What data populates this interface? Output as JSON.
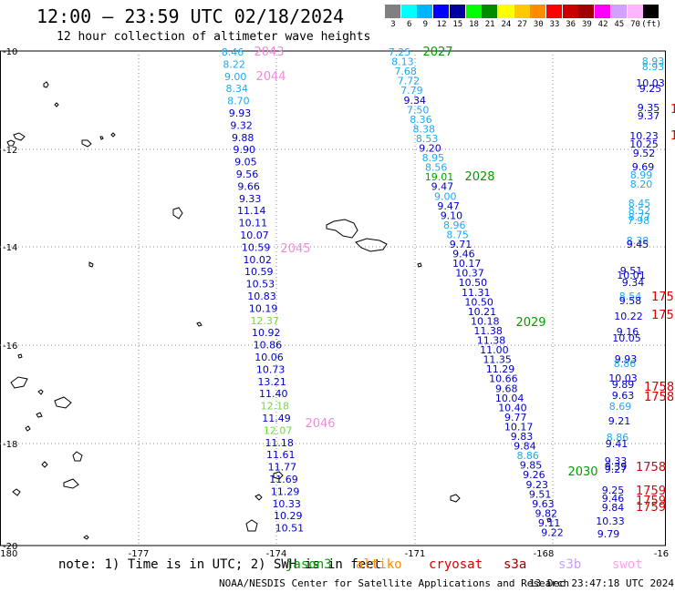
{
  "header": {
    "title": "12:00 — 23:59 UTC 02/18/2024",
    "subtitle": "12 hour collection of altimeter wave heights"
  },
  "legend": {
    "units": "(ft)",
    "bins": [
      {
        "label": "3",
        "color": "#808080"
      },
      {
        "label": "6",
        "color": "#00ffff"
      },
      {
        "label": "9",
        "color": "#00b4ff"
      },
      {
        "label": "12",
        "color": "#0000ff"
      },
      {
        "label": "15",
        "color": "#0000a0"
      },
      {
        "label": "18",
        "color": "#00ff00"
      },
      {
        "label": "21",
        "color": "#008c00"
      },
      {
        "label": "24",
        "color": "#ffff00"
      },
      {
        "label": "27",
        "color": "#ffc800"
      },
      {
        "label": "30",
        "color": "#ff8c00"
      },
      {
        "label": "33",
        "color": "#ff0000"
      },
      {
        "label": "36",
        "color": "#c80000"
      },
      {
        "label": "39",
        "color": "#a00000"
      },
      {
        "label": "42",
        "color": "#ff00ff"
      },
      {
        "label": "45",
        "color": "#d2a0ff"
      },
      {
        "label": "70",
        "color": "#ffb4ff"
      },
      {
        "label": "",
        "color": "#000000"
      }
    ]
  },
  "axes": {
    "lon_labels": [
      "-180",
      "-177",
      "-174",
      "-171",
      "-168",
      "-16"
    ],
    "lat_labels": [
      "-10",
      "-12",
      "-14",
      "-16",
      "-18",
      "-20"
    ]
  },
  "colors": {
    "cyan": "#1eaaf0",
    "blue": "#0000c8",
    "green": "#00a000",
    "lightgreen": "#6edc3c",
    "pink": "#f08cdc",
    "red": "#dc0000"
  },
  "tracks": [
    {
      "name": "2043",
      "color": "pink",
      "labels": [
        {
          "v": "2043",
          "c": "pink"
        },
        {
          "v": "2044",
          "c": "pink"
        }
      ]
    },
    {
      "name": "track-a",
      "readings": [
        {
          "v": "8.46",
          "c": "cyan"
        },
        {
          "v": "8.22",
          "c": "cyan"
        },
        {
          "v": "9.00",
          "c": "cyan"
        },
        {
          "v": "8.34",
          "c": "cyan"
        },
        {
          "v": "8.70",
          "c": "cyan"
        },
        {
          "v": "9.93",
          "c": "blue"
        },
        {
          "v": "9.32",
          "c": "blue"
        },
        {
          "v": "9.88",
          "c": "blue"
        },
        {
          "v": "9.90",
          "c": "blue"
        },
        {
          "v": "9.05",
          "c": "blue"
        },
        {
          "v": "9.56",
          "c": "blue"
        },
        {
          "v": "9.66",
          "c": "blue"
        },
        {
          "v": "9.33",
          "c": "blue"
        },
        {
          "v": "11.14",
          "c": "blue"
        },
        {
          "v": "10.11",
          "c": "blue"
        },
        {
          "v": "10.07",
          "c": "blue"
        },
        {
          "v": "10.59",
          "c": "blue"
        },
        {
          "v": "10.02",
          "c": "blue"
        },
        {
          "v": "10.59",
          "c": "blue"
        },
        {
          "v": "10.53",
          "c": "blue"
        },
        {
          "v": "10.83",
          "c": "blue"
        },
        {
          "v": "10.19",
          "c": "blue"
        },
        {
          "v": "12.37",
          "c": "lightgreen"
        },
        {
          "v": "10.92",
          "c": "blue"
        },
        {
          "v": "10.86",
          "c": "blue"
        },
        {
          "v": "10.06",
          "c": "blue"
        },
        {
          "v": "10.73",
          "c": "blue"
        },
        {
          "v": "13.21",
          "c": "blue"
        },
        {
          "v": "11.40",
          "c": "blue"
        },
        {
          "v": "12.18",
          "c": "lightgreen"
        },
        {
          "v": "11.49",
          "c": "blue"
        },
        {
          "v": "12.07",
          "c": "lightgreen"
        },
        {
          "v": "11.18",
          "c": "blue"
        },
        {
          "v": "11.61",
          "c": "blue"
        },
        {
          "v": "11.77",
          "c": "blue"
        },
        {
          "v": "11.69",
          "c": "blue"
        },
        {
          "v": "11.29",
          "c": "blue"
        },
        {
          "v": "10.33",
          "c": "blue"
        },
        {
          "v": "10.29",
          "c": "blue"
        },
        {
          "v": "10.51",
          "c": "blue"
        }
      ],
      "time_labels": [
        {
          "v": "2045",
          "c": "pink"
        },
        {
          "v": "2046",
          "c": "pink"
        }
      ]
    },
    {
      "name": "track-b",
      "readings": [
        {
          "v": "7.25",
          "c": "cyan"
        },
        {
          "v": "8.13",
          "c": "cyan"
        },
        {
          "v": "7.68",
          "c": "cyan"
        },
        {
          "v": "7.72",
          "c": "cyan"
        },
        {
          "v": "7.79",
          "c": "cyan"
        },
        {
          "v": "9.34",
          "c": "blue"
        },
        {
          "v": "7.50",
          "c": "cyan"
        },
        {
          "v": "8.36",
          "c": "cyan"
        },
        {
          "v": "8.38",
          "c": "cyan"
        },
        {
          "v": "8.53",
          "c": "cyan"
        },
        {
          "v": "9.20",
          "c": "blue"
        },
        {
          "v": "8.95",
          "c": "cyan"
        },
        {
          "v": "8.56",
          "c": "cyan"
        },
        {
          "v": "19.01",
          "c": "green"
        },
        {
          "v": "9.47",
          "c": "blue"
        },
        {
          "v": "9.00",
          "c": "cyan"
        },
        {
          "v": "9.47",
          "c": "blue"
        },
        {
          "v": "9.10",
          "c": "blue"
        },
        {
          "v": "8.96",
          "c": "cyan"
        },
        {
          "v": "8.75",
          "c": "cyan"
        },
        {
          "v": "9.71",
          "c": "blue"
        },
        {
          "v": "9.46",
          "c": "blue"
        },
        {
          "v": "10.17",
          "c": "blue"
        },
        {
          "v": "10.37",
          "c": "blue"
        },
        {
          "v": "10.50",
          "c": "blue"
        },
        {
          "v": "11.31",
          "c": "blue"
        },
        {
          "v": "10.50",
          "c": "blue"
        },
        {
          "v": "10.21",
          "c": "blue"
        },
        {
          "v": "10.18",
          "c": "blue"
        },
        {
          "v": "11.38",
          "c": "blue"
        },
        {
          "v": "11.38",
          "c": "blue"
        },
        {
          "v": "11.00",
          "c": "blue"
        },
        {
          "v": "11.35",
          "c": "blue"
        },
        {
          "v": "11.29",
          "c": "blue"
        },
        {
          "v": "10.66",
          "c": "blue"
        },
        {
          "v": "9.68",
          "c": "blue"
        },
        {
          "v": "10.04",
          "c": "blue"
        },
        {
          "v": "10.40",
          "c": "blue"
        },
        {
          "v": "9.77",
          "c": "blue"
        },
        {
          "v": "10.17",
          "c": "blue"
        },
        {
          "v": "9.83",
          "c": "blue"
        },
        {
          "v": "9.84",
          "c": "blue"
        },
        {
          "v": "8.86",
          "c": "cyan"
        },
        {
          "v": "9.85",
          "c": "blue"
        },
        {
          "v": "9.26",
          "c": "blue"
        },
        {
          "v": "9.23",
          "c": "blue"
        },
        {
          "v": "9.51",
          "c": "blue"
        },
        {
          "v": "9.63",
          "c": "blue"
        },
        {
          "v": "9.82",
          "c": "blue"
        },
        {
          "v": "9.11",
          "c": "blue"
        },
        {
          "v": "9.22",
          "c": "blue"
        }
      ],
      "time_labels": [
        {
          "v": "2027",
          "c": "green"
        },
        {
          "v": "2028",
          "c": "green"
        },
        {
          "v": "2029",
          "c": "green"
        },
        {
          "v": "2030",
          "c": "green"
        }
      ]
    },
    {
      "name": "track-c",
      "readings": [
        {
          "v": "8.93",
          "c": "cyan"
        },
        {
          "v": "8.93",
          "c": "cyan"
        },
        {
          "v": "10.03",
          "c": "blue"
        },
        {
          "v": "9.25",
          "c": "blue"
        },
        {
          "v": "9.35",
          "c": "blue"
        },
        {
          "v": "9.37",
          "c": "blue"
        },
        {
          "v": "10.23",
          "c": "blue"
        },
        {
          "v": "10.25",
          "c": "blue"
        },
        {
          "v": "9.52",
          "c": "blue"
        },
        {
          "v": "9.69",
          "c": "blue"
        },
        {
          "v": "8.99",
          "c": "cyan"
        },
        {
          "v": "8.20",
          "c": "cyan"
        },
        {
          "v": "8.45",
          "c": "cyan"
        },
        {
          "v": "8.52",
          "c": "cyan"
        },
        {
          "v": "8.77",
          "c": "cyan"
        },
        {
          "v": "7.98",
          "c": "cyan"
        },
        {
          "v": "8.38",
          "c": "cyan"
        },
        {
          "v": "9.45",
          "c": "blue"
        },
        {
          "v": "9.51",
          "c": "blue"
        },
        {
          "v": "10.01",
          "c": "blue"
        },
        {
          "v": "9.34",
          "c": "blue"
        },
        {
          "v": "8.54",
          "c": "cyan"
        },
        {
          "v": "9.58",
          "c": "blue"
        },
        {
          "v": "10.22",
          "c": "blue"
        },
        {
          "v": "9.16",
          "c": "blue"
        },
        {
          "v": "10.05",
          "c": "blue"
        },
        {
          "v": "9.93",
          "c": "blue"
        },
        {
          "v": "8.86",
          "c": "cyan"
        },
        {
          "v": "10.03",
          "c": "blue"
        },
        {
          "v": "9.89",
          "c": "blue"
        },
        {
          "v": "9.63",
          "c": "blue"
        },
        {
          "v": "8.69",
          "c": "cyan"
        },
        {
          "v": "9.21",
          "c": "blue"
        },
        {
          "v": "8.86",
          "c": "cyan"
        },
        {
          "v": "9.41",
          "c": "blue"
        },
        {
          "v": "9.33",
          "c": "blue"
        },
        {
          "v": "9.39",
          "c": "blue"
        },
        {
          "v": "9.27",
          "c": "blue"
        },
        {
          "v": "9.25",
          "c": "blue"
        },
        {
          "v": "9.46",
          "c": "blue"
        },
        {
          "v": "9.84",
          "c": "blue"
        },
        {
          "v": "10.33",
          "c": "blue"
        },
        {
          "v": "9.79",
          "c": "blue"
        }
      ],
      "time_labels": [
        {
          "v": "17",
          "c": "red"
        },
        {
          "v": "1",
          "c": "red"
        },
        {
          "v": "175",
          "c": "red"
        },
        {
          "v": "175",
          "c": "red"
        },
        {
          "v": "1758",
          "c": "red"
        },
        {
          "v": "1758",
          "c": "red"
        },
        {
          "v": "1758",
          "c": "red"
        },
        {
          "v": "1759",
          "c": "red"
        },
        {
          "v": "1759",
          "c": "red"
        },
        {
          "v": "1759",
          "c": "red"
        }
      ]
    }
  ],
  "footer": {
    "note": "note: 1) Time is in UTC; 2) SWH is in feet",
    "missions": [
      {
        "label": "jason3",
        "color": "#00a000"
      },
      {
        "label": "altiko",
        "color": "#ff8c00"
      },
      {
        "label": "cryosat",
        "color": "#dc0000"
      },
      {
        "label": "s3a",
        "color": "#a00000"
      },
      {
        "label": "s3b",
        "color": "#c8a0ff"
      },
      {
        "label": "swot",
        "color": "#ffa0f0"
      }
    ],
    "credit": "NOAA/NESDIS Center for Satellite Applications and Research",
    "timestamp": "13 Dec 23:47:18 UTC 2024"
  }
}
